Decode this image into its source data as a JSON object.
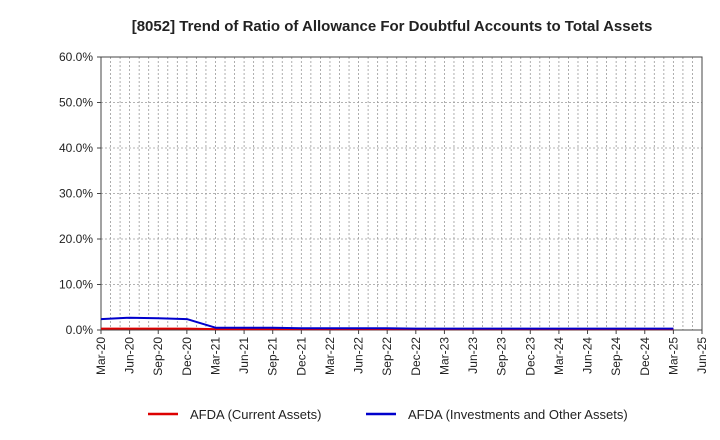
{
  "chart_data": {
    "type": "line",
    "title": "[8052]  Trend of Ratio of Allowance For Doubtful Accounts to Total Assets",
    "xlabel": "",
    "ylabel": "",
    "ylim": [
      0,
      60
    ],
    "y_ticks": [
      "0.0%",
      "10.0%",
      "20.0%",
      "30.0%",
      "40.0%",
      "50.0%",
      "60.0%"
    ],
    "y_tick_values": [
      0,
      10,
      20,
      30,
      40,
      50,
      60
    ],
    "x_tick_labels": [
      "Mar-20",
      "Jun-20",
      "Sep-20",
      "Dec-20",
      "Mar-21",
      "Jun-21",
      "Sep-21",
      "Dec-21",
      "Mar-22",
      "Jun-22",
      "Sep-22",
      "Dec-22",
      "Mar-23",
      "Jun-23",
      "Sep-23",
      "Dec-23",
      "Mar-24",
      "Jun-24",
      "Sep-24",
      "Dec-24",
      "Mar-25",
      "Jun-25"
    ],
    "grid": true,
    "legend_position": "bottom",
    "x": [
      "Mar-20",
      "Jun-20",
      "Sep-20",
      "Dec-20",
      "Mar-21",
      "Jun-21",
      "Sep-21",
      "Dec-21",
      "Mar-22",
      "Jun-22",
      "Sep-22",
      "Dec-22",
      "Mar-23",
      "Jun-23",
      "Sep-23",
      "Dec-23",
      "Mar-24",
      "Jun-24",
      "Sep-24",
      "Dec-24",
      "Mar-25"
    ],
    "series": [
      {
        "name": "AFDA (Current Assets)",
        "color": "#dd0000",
        "values": [
          0.3,
          0.3,
          0.3,
          0.3,
          0.2,
          0.2,
          0.2,
          0.2,
          0.2,
          0.2,
          0.2,
          0.2,
          0.2,
          0.2,
          0.2,
          0.2,
          0.2,
          0.2,
          0.2,
          0.2,
          0.2
        ]
      },
      {
        "name": "AFDA (Investments and Other Assets)",
        "color": "#0000cc",
        "values": [
          2.4,
          2.7,
          2.6,
          2.4,
          0.5,
          0.5,
          0.5,
          0.4,
          0.4,
          0.4,
          0.4,
          0.3,
          0.3,
          0.3,
          0.3,
          0.3,
          0.3,
          0.3,
          0.3,
          0.3,
          0.3
        ]
      }
    ]
  }
}
